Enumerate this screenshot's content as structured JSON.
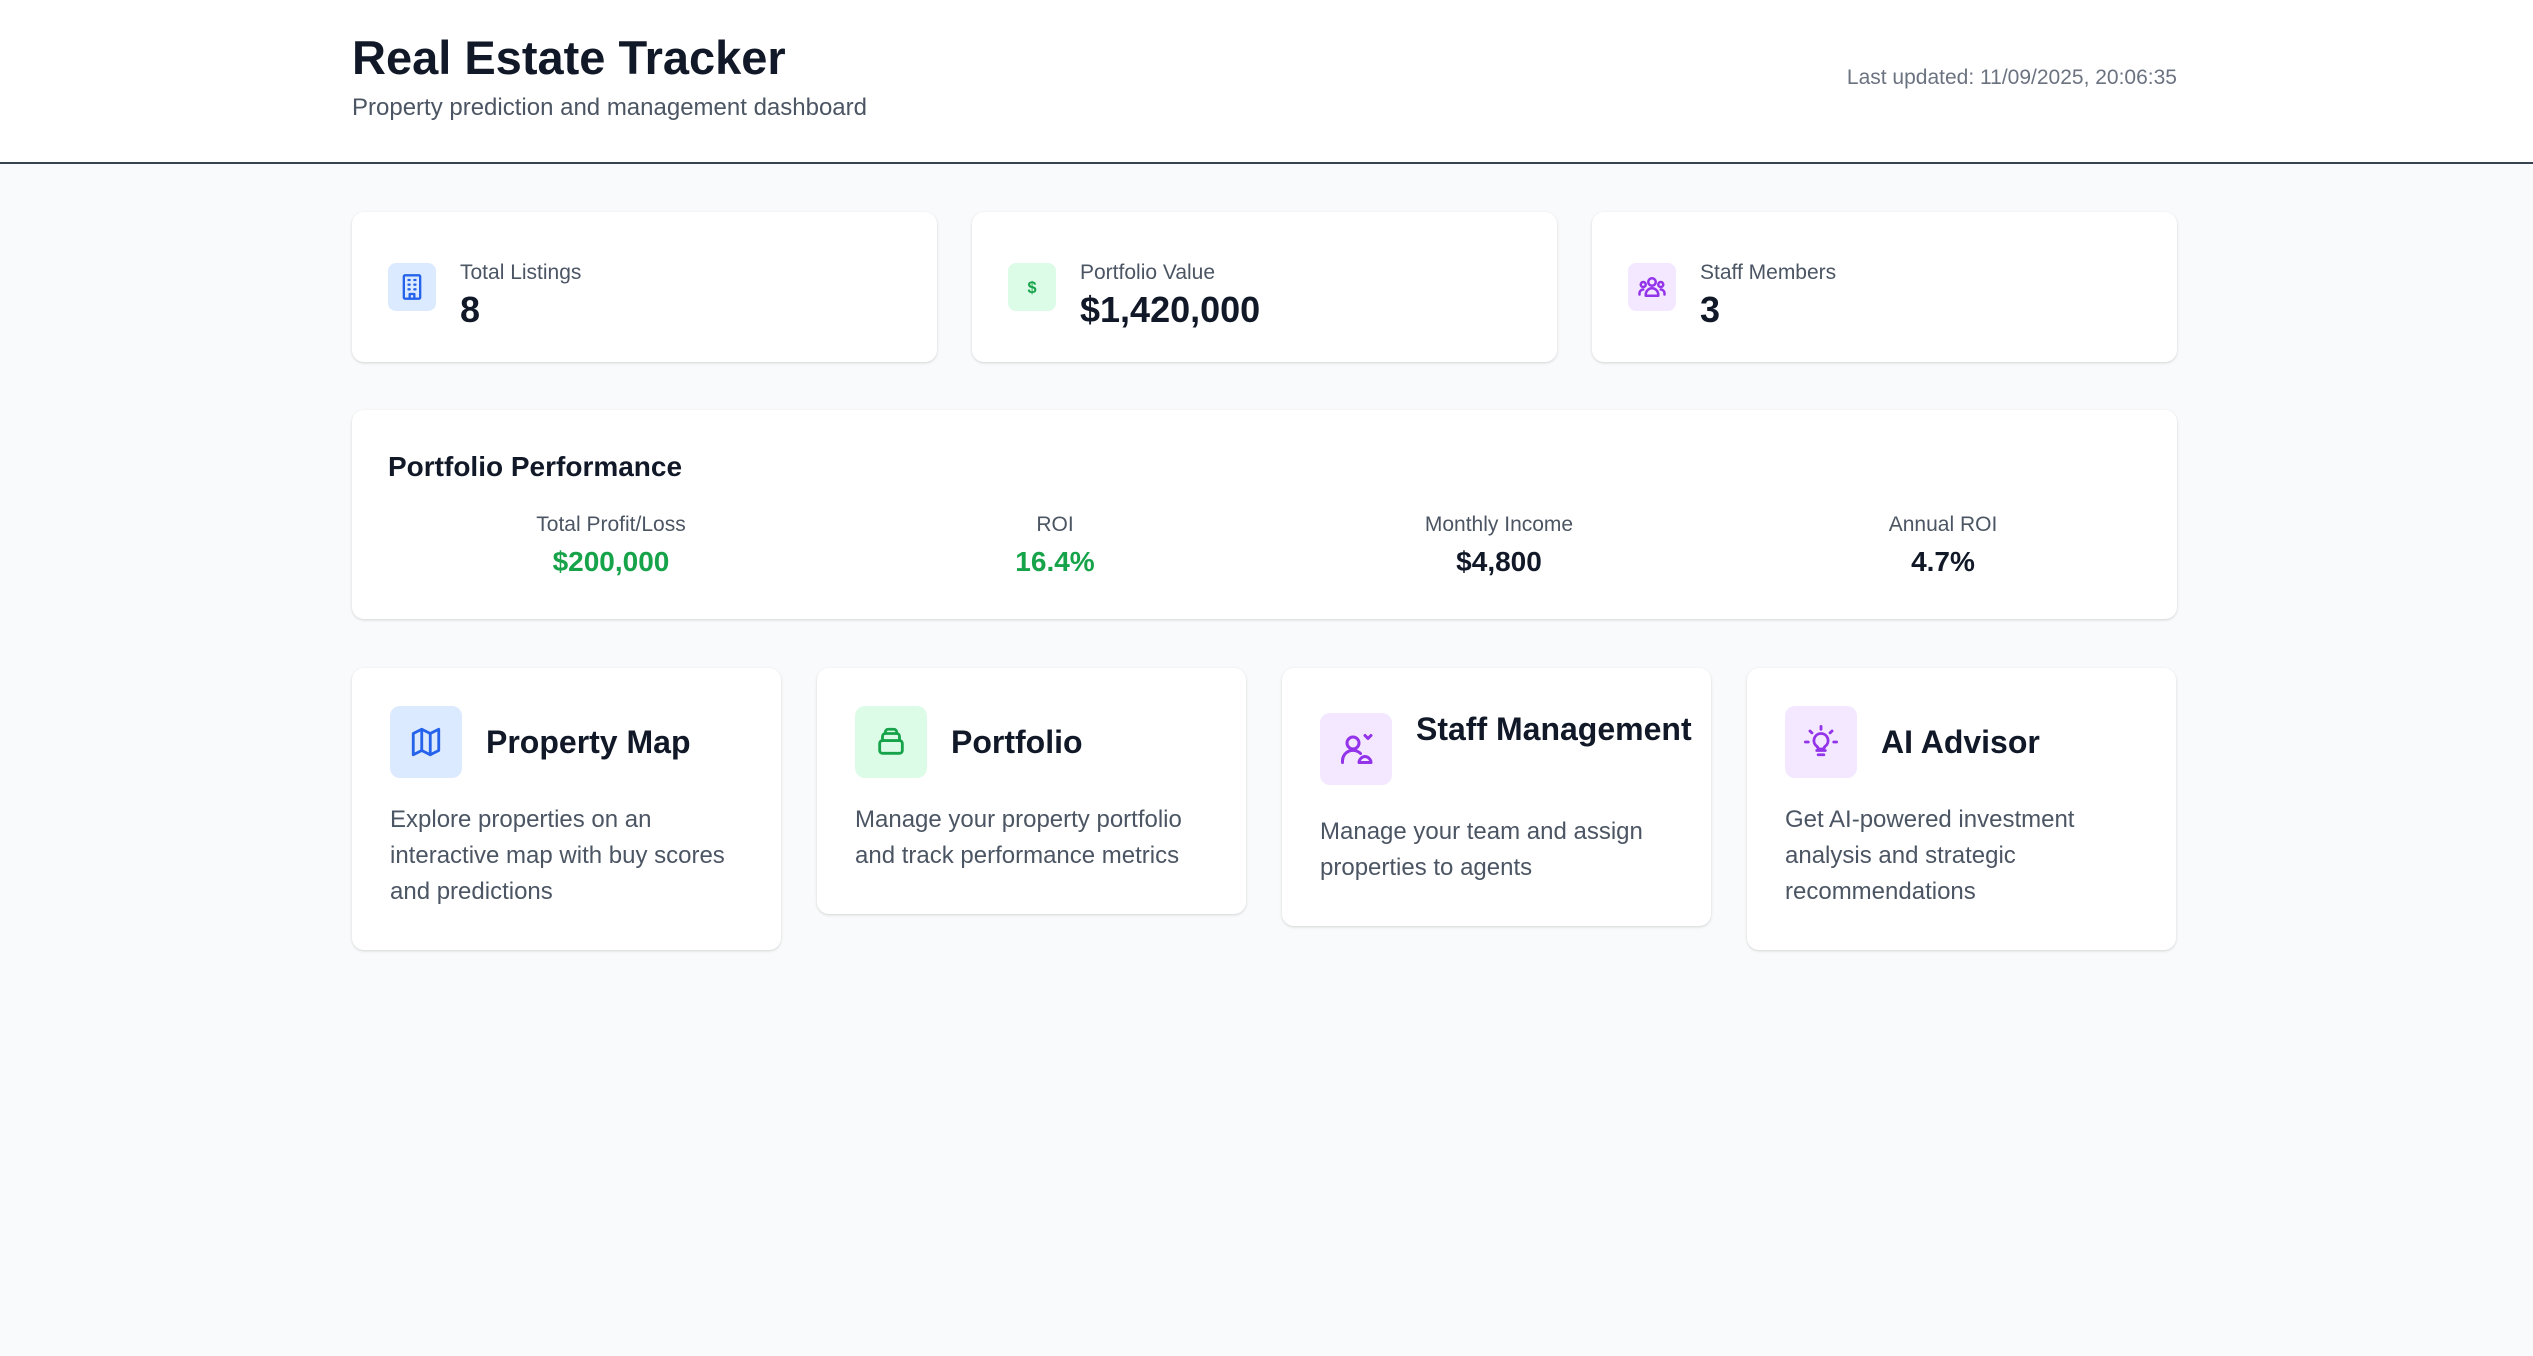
{
  "header": {
    "title": "Real Estate Tracker",
    "subtitle": "Property prediction and management dashboard",
    "last_updated_label": "Last updated:",
    "last_updated_value": "11/09/2025, 20:06:35"
  },
  "stats": [
    {
      "label": "Total Listings",
      "value": "8",
      "icon": "building-icon",
      "icon_bg": "#dbeafe",
      "icon_color": "#2563eb"
    },
    {
      "label": "Portfolio Value",
      "value": "$1,420,000",
      "icon": "dollar-icon",
      "icon_bg": "#dcfce7",
      "icon_color": "#16a34a"
    },
    {
      "label": "Staff Members",
      "value": "3",
      "icon": "users-icon",
      "icon_bg": "#f3e8ff",
      "icon_color": "#9333ea"
    }
  ],
  "performance": {
    "title": "Portfolio Performance",
    "metrics": [
      {
        "label": "Total Profit/Loss",
        "value": "$200,000",
        "color": "#16a34a"
      },
      {
        "label": "ROI",
        "value": "16.4%",
        "color": "#16a34a"
      },
      {
        "label": "Monthly Income",
        "value": "$4,800",
        "color": "#111827"
      },
      {
        "label": "Annual ROI",
        "value": "4.7%",
        "color": "#111827"
      }
    ]
  },
  "features": [
    {
      "title": "Property Map",
      "description": "Explore properties on an interactive map with buy scores and predictions",
      "icon": "map-icon",
      "icon_bg": "#dbeafe",
      "icon_color": "#2563eb"
    },
    {
      "title": "Portfolio",
      "description": "Manage your property portfolio and track performance metrics",
      "icon": "wallet-icon",
      "icon_bg": "#dcfce7",
      "icon_color": "#16a34a"
    },
    {
      "title": "Staff Management",
      "description": "Manage your team and assign properties to agents",
      "icon": "user-cog-icon",
      "icon_bg": "#f3e8ff",
      "icon_color": "#9333ea"
    },
    {
      "title": "AI Advisor",
      "description": "Get AI-powered investment analysis and strategic recommendations",
      "icon": "lightbulb-icon",
      "icon_bg": "#f3e8ff",
      "icon_color": "#9333ea"
    }
  ]
}
